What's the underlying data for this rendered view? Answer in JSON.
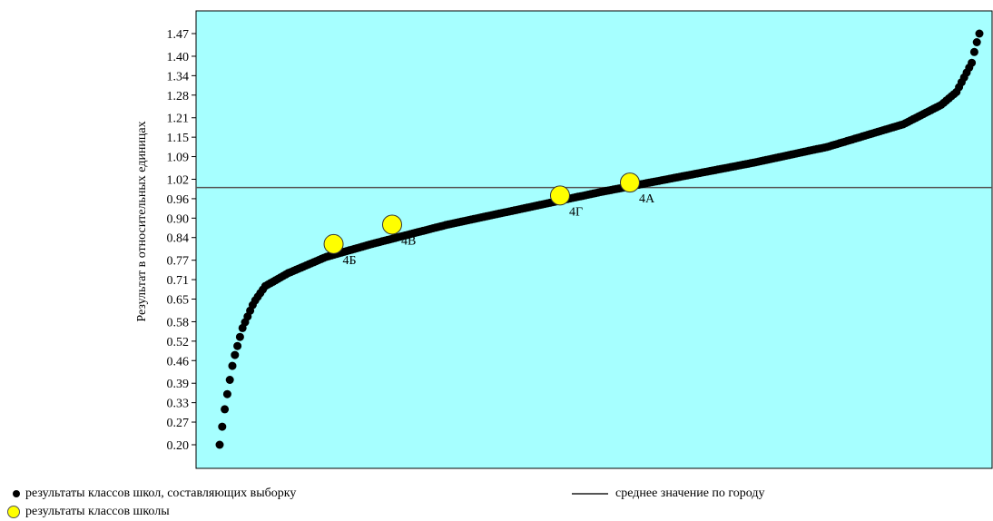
{
  "chart_data": {
    "type": "scatter",
    "ylabel": "Результат в относительных единицах",
    "ylim": [
      0.2,
      1.47
    ],
    "y_ticks": [
      "0.20",
      "0.27",
      "0.33",
      "0.39",
      "0.46",
      "0.52",
      "0.58",
      "0.65",
      "0.71",
      "0.77",
      "0.84",
      "0.90",
      "0.96",
      "1.02",
      "1.09",
      "1.15",
      "1.21",
      "1.28",
      "1.34",
      "1.40",
      "1.47"
    ],
    "n_points": 300,
    "curve_profile": [
      {
        "rank": 0.0,
        "value": 0.2
      },
      {
        "rank": 0.006,
        "value": 0.3
      },
      {
        "rank": 0.011,
        "value": 0.37
      },
      {
        "rank": 0.018,
        "value": 0.46
      },
      {
        "rank": 0.03,
        "value": 0.56
      },
      {
        "rank": 0.045,
        "value": 0.64
      },
      {
        "rank": 0.06,
        "value": 0.69
      },
      {
        "rank": 0.09,
        "value": 0.73
      },
      {
        "rank": 0.14,
        "value": 0.78
      },
      {
        "rank": 0.2,
        "value": 0.82
      },
      {
        "rank": 0.3,
        "value": 0.88
      },
      {
        "rank": 0.4,
        "value": 0.93
      },
      {
        "rank": 0.5,
        "value": 0.98
      },
      {
        "rank": 0.6,
        "value": 1.025
      },
      {
        "rank": 0.7,
        "value": 1.07
      },
      {
        "rank": 0.8,
        "value": 1.12
      },
      {
        "rank": 0.9,
        "value": 1.19
      },
      {
        "rank": 0.95,
        "value": 1.25
      },
      {
        "rank": 0.97,
        "value": 1.29
      },
      {
        "rank": 0.99,
        "value": 1.38
      },
      {
        "rank": 0.995,
        "value": 1.43
      },
      {
        "rank": 1.0,
        "value": 1.47
      }
    ],
    "reference_line": {
      "value": 1.0,
      "label": "среднее значение по городу"
    },
    "highlighted": [
      {
        "label": "4Б",
        "rank": 0.15,
        "value": 0.82
      },
      {
        "label": "4В",
        "rank": 0.227,
        "value": 0.88
      },
      {
        "label": "4Г",
        "rank": 0.448,
        "value": 0.97
      },
      {
        "label": "4А",
        "rank": 0.54,
        "value": 1.01
      }
    ],
    "legend": {
      "sample_label": "результаты классов школ, составляющих выборку",
      "school_label": "результаты классов школы",
      "mean_label": "среднее значение по городу"
    },
    "colors": {
      "background": "#a6ffff",
      "points": "#000000",
      "highlight": "#ffff00",
      "line": "#555555"
    }
  }
}
